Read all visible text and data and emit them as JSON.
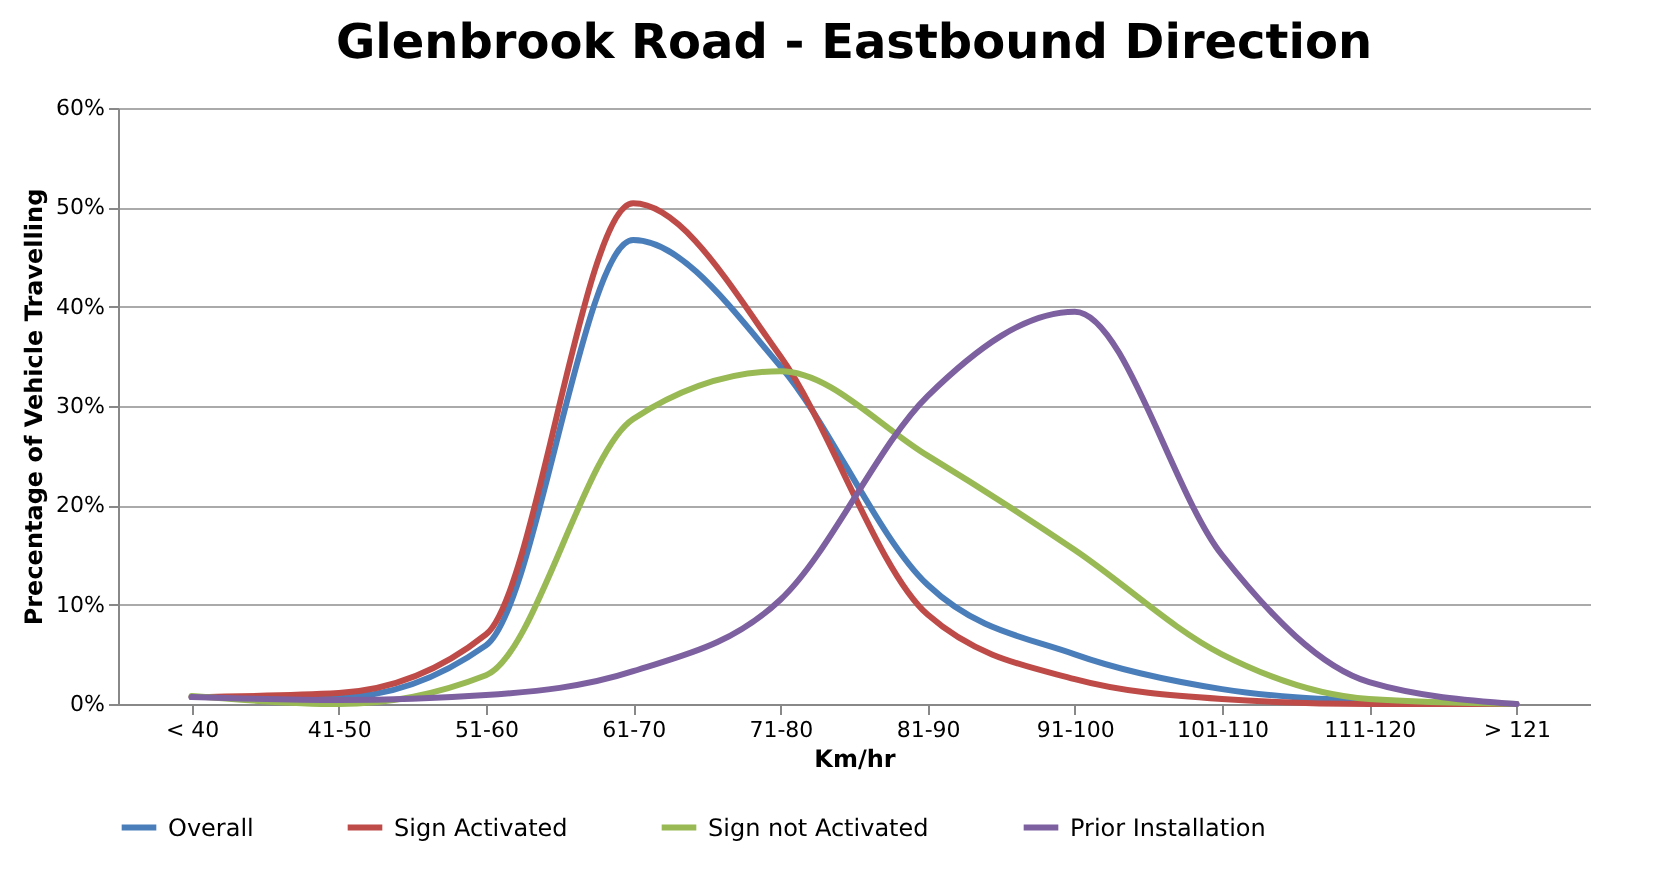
{
  "chart_data": {
    "type": "line",
    "title": "Glenbrook Road - Eastbound Direction",
    "xlabel": "Km/hr",
    "ylabel": "Precentage of Vehicle Travelling",
    "categories": [
      "< 40",
      "41-50",
      "51-60",
      "61-70",
      "71-80",
      "81-90",
      "91-100",
      "101-110",
      "111-120",
      "> 121"
    ],
    "series": [
      {
        "name": "Overall",
        "color": "#4a7ebb",
        "values": [
          0.7,
          0.7,
          5.9,
          46.7,
          34,
          12,
          5,
          1.5,
          0.3,
          0
        ]
      },
      {
        "name": "Sign Activated",
        "color": "#be4b48",
        "values": [
          0.7,
          1.1,
          7,
          50.4,
          35,
          9,
          2.5,
          0.5,
          0,
          0
        ]
      },
      {
        "name": "Sign not Activated",
        "color": "#98b954",
        "values": [
          0.8,
          0,
          2.9,
          28.7,
          33.5,
          25,
          15.5,
          5,
          0.5,
          0
        ]
      },
      {
        "name": "Prior Installation",
        "color": "#7d60a0",
        "values": [
          0.7,
          0.4,
          0.9,
          3.3,
          10.5,
          31,
          39.5,
          15,
          2.2,
          0
        ]
      }
    ],
    "ylim": [
      0,
      60
    ],
    "yticks": [
      {
        "value": 0,
        "label": "0%"
      },
      {
        "value": 10,
        "label": "10%"
      },
      {
        "value": 20,
        "label": "20%"
      },
      {
        "value": 30,
        "label": "30%"
      },
      {
        "value": 40,
        "label": "40%"
      },
      {
        "value": 50,
        "label": "50%"
      },
      {
        "value": 60,
        "label": "60%"
      }
    ],
    "grid": "y",
    "legend": "bottom",
    "marker": "none",
    "line_style": "solid"
  }
}
